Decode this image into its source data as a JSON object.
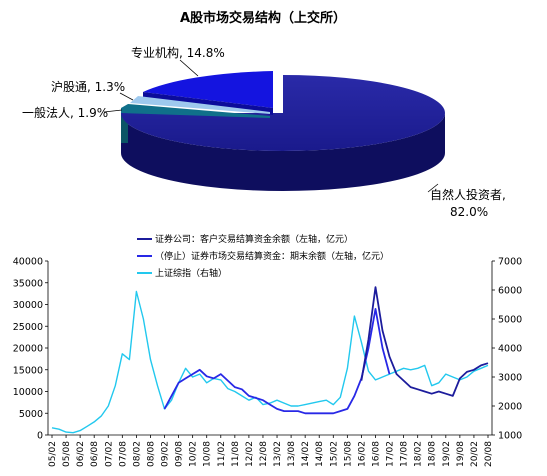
{
  "chart_data": [
    {
      "type": "pie",
      "title": "A股市场交易结构（上交所）",
      "slices": [
        {
          "label": "自然人投资者,",
          "value_text": "82.0%",
          "value": 82.0,
          "color": "#1a1a8c"
        },
        {
          "label": "专业机构,",
          "value_text": "14.8%",
          "value": 14.8,
          "color": "#1414e0"
        },
        {
          "label": "沪股通,",
          "value_text": "1.3%",
          "value": 1.3,
          "color": "#9ec9ee"
        },
        {
          "label": "一般法人,",
          "value_text": "1.9%",
          "value": 1.9,
          "color": "#10708a"
        }
      ]
    },
    {
      "type": "line",
      "title": "",
      "y_left": {
        "ylim": [
          0,
          40000
        ],
        "ticks": [
          "0",
          "5000",
          "10000",
          "15000",
          "20000",
          "25000",
          "30000",
          "35000",
          "40000"
        ]
      },
      "y_right": {
        "ylim": [
          1000,
          7000
        ],
        "ticks": [
          "1000",
          "2000",
          "3000",
          "4000",
          "5000",
          "6000",
          "7000"
        ]
      },
      "x_ticks": [
        "05/02",
        "05/08",
        "06/02",
        "06/08",
        "07/02",
        "07/08",
        "08/02",
        "08/08",
        "09/02",
        "09/08",
        "10/02",
        "10/08",
        "11/02",
        "11/08",
        "12/02",
        "12/08",
        "13/02",
        "13/08",
        "14/02",
        "14/08",
        "15/02",
        "15/08",
        "16/02",
        "16/08",
        "17/02",
        "17/08",
        "18/02",
        "18/08",
        "19/02",
        "19/08",
        "20/02",
        "20/08"
      ],
      "grid": false,
      "legend_placement": "top-center",
      "series": [
        {
          "name": "证券公司：客户交易结算资金余额（左轴，亿元）",
          "color": "#1c1c9c",
          "axis": "left",
          "x": [
            7.0,
            7.5,
            8.0,
            8.5,
            9.0,
            9.5,
            10.0,
            10.5,
            11.0,
            11.5,
            12.0,
            12.5,
            13.0,
            13.5,
            14.0,
            14.5,
            15.0,
            15.5,
            16.0,
            16.5,
            17.0,
            17.5,
            18.0,
            18.5,
            19.0,
            19.5,
            20.0,
            20.5,
            21.0,
            21.5,
            22.0,
            22.5,
            23.0,
            23.5,
            24.0,
            24.5,
            25.0,
            25.5,
            26.0,
            26.5,
            27.0,
            27.5,
            28.0,
            28.5,
            29.0,
            29.5,
            30.0,
            30.5,
            31.0
          ],
          "values": [
            null,
            null,
            null,
            null,
            null,
            null,
            null,
            null,
            null,
            null,
            null,
            null,
            null,
            null,
            null,
            null,
            null,
            null,
            null,
            null,
            null,
            null,
            null,
            null,
            null,
            null,
            null,
            null,
            null,
            null,
            12500,
            22000,
            34000,
            24000,
            18000,
            14000,
            12500,
            11000,
            10500,
            10000,
            9500,
            10000,
            9500,
            9000,
            13000,
            14500,
            15000,
            16000,
            16500
          ]
        },
        {
          "name": "（停止）证券市场交易结算资金：期末余额（左轴，亿元）",
          "color": "#2828e6",
          "axis": "left",
          "x": [
            8.0,
            8.5,
            9.0,
            9.5,
            10.0,
            10.5,
            11.0,
            11.5,
            12.0,
            12.5,
            13.0,
            13.5,
            14.0,
            14.5,
            15.0,
            15.5,
            16.0,
            16.5,
            17.0,
            17.5,
            18.0,
            18.5,
            19.0,
            19.5,
            20.0,
            20.5,
            21.0,
            21.5,
            22.0,
            22.5,
            23.0,
            23.5,
            24.0
          ],
          "values": [
            6000,
            9000,
            12000,
            13000,
            14000,
            15000,
            13500,
            13000,
            14000,
            12500,
            11000,
            10500,
            9000,
            8500,
            8000,
            7000,
            6000,
            5500,
            5500,
            5500,
            5000,
            5000,
            5000,
            5000,
            5000,
            5500,
            6000,
            9000,
            13000,
            20000,
            29000,
            20000,
            14000
          ]
        },
        {
          "name": "上证综指（右轴）",
          "color": "#22c8ee",
          "axis": "right",
          "x": [
            0.0,
            0.5,
            1.0,
            1.5,
            2.0,
            2.5,
            3.0,
            3.5,
            4.0,
            4.5,
            5.0,
            5.5,
            6.0,
            6.5,
            7.0,
            7.5,
            8.0,
            8.5,
            9.0,
            9.5,
            10.0,
            10.5,
            11.0,
            11.5,
            12.0,
            12.5,
            13.0,
            13.5,
            14.0,
            14.5,
            15.0,
            15.5,
            16.0,
            16.5,
            17.0,
            17.5,
            18.0,
            18.5,
            19.0,
            19.5,
            20.0,
            20.5,
            21.0,
            21.5,
            22.0,
            22.5,
            23.0,
            23.5,
            24.0,
            24.5,
            25.0,
            25.5,
            26.0,
            26.5,
            27.0,
            27.5,
            28.0,
            28.5,
            29.0,
            29.5,
            30.0,
            30.5,
            31.0
          ],
          "values": [
            1250,
            1200,
            1100,
            1080,
            1150,
            1300,
            1450,
            1650,
            2000,
            2700,
            3800,
            3600,
            5950,
            5000,
            3600,
            2700,
            1900,
            2200,
            2800,
            3300,
            3000,
            3100,
            2800,
            2950,
            2900,
            2600,
            2500,
            2350,
            2200,
            2300,
            2050,
            2100,
            2200,
            2100,
            2000,
            2000,
            2050,
            2100,
            2150,
            2200,
            2050,
            2300,
            3300,
            5100,
            4200,
            3200,
            2900,
            3000,
            3100,
            3200,
            3300,
            3250,
            3300,
            3400,
            2700,
            2800,
            3100,
            3000,
            2900,
            3000,
            3200,
            3300,
            3400
          ]
        }
      ]
    }
  ]
}
